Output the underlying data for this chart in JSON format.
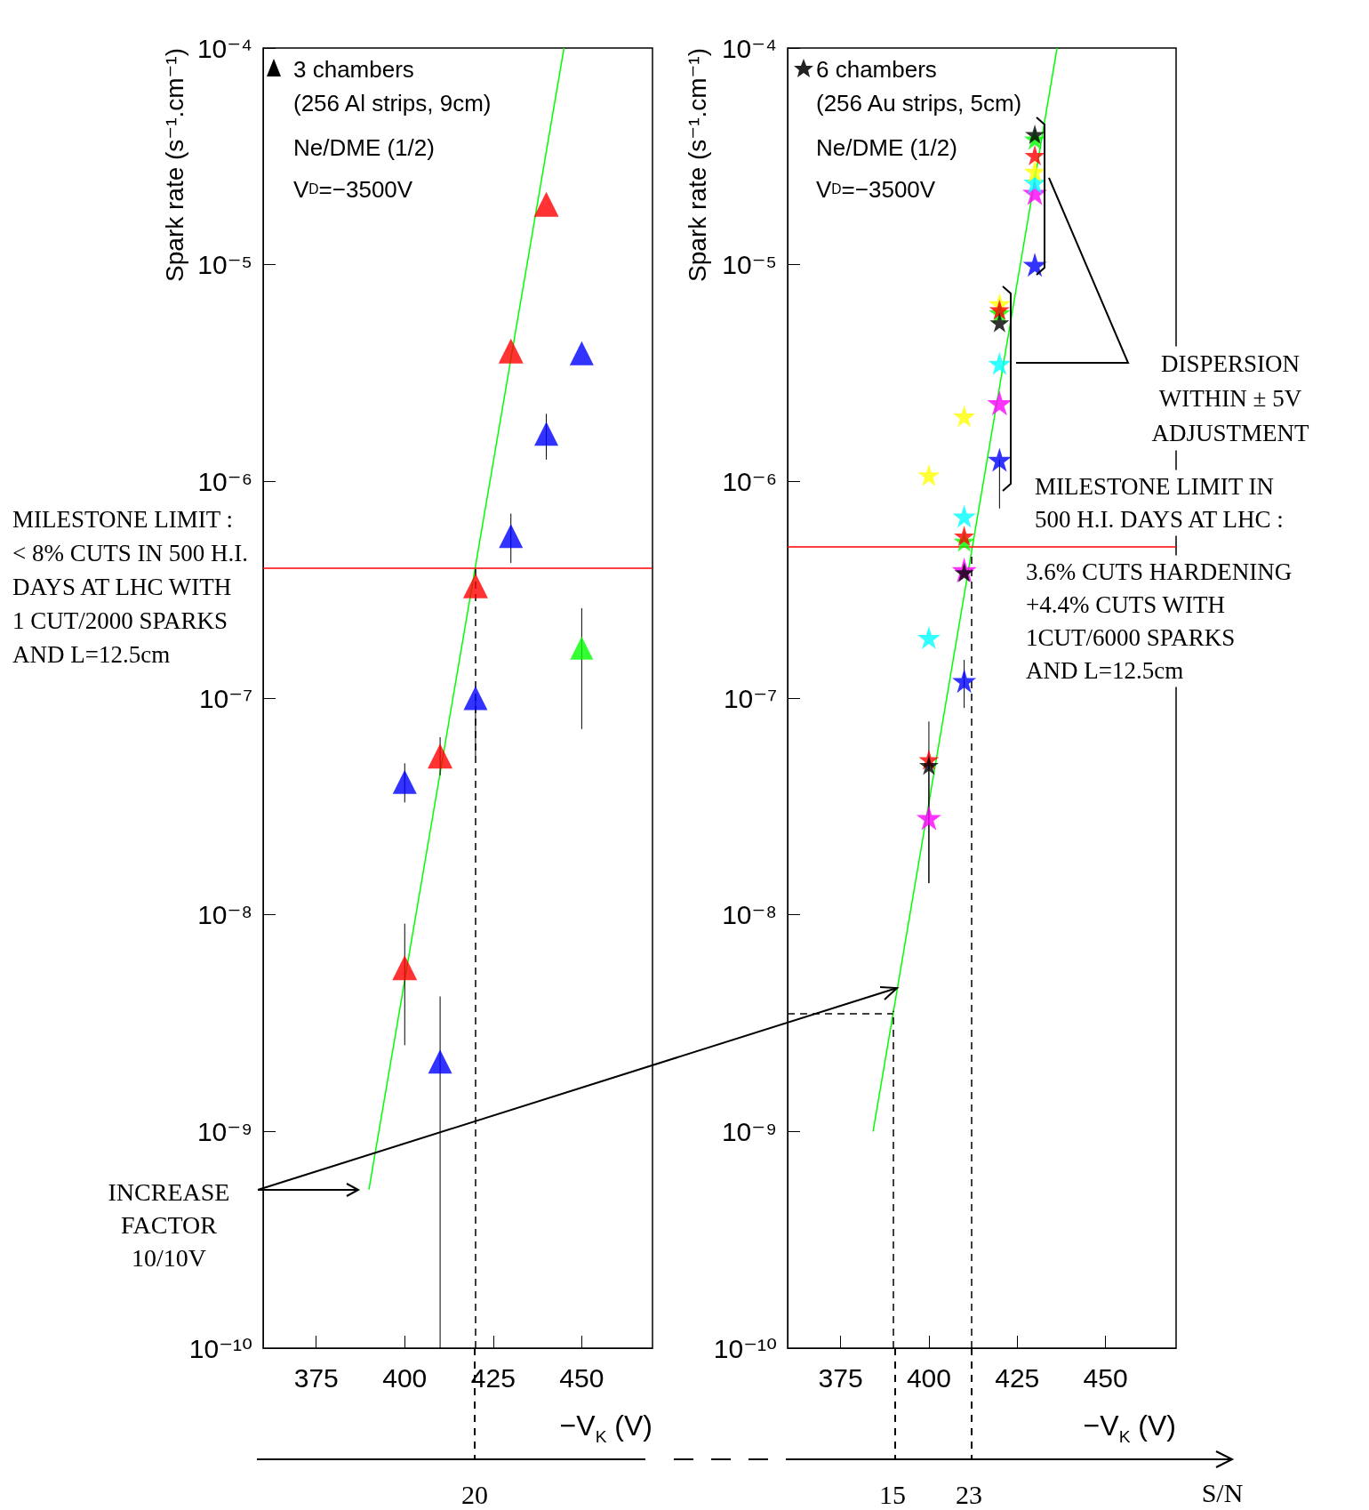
{
  "chart_data": [
    {
      "type": "scatter",
      "marker": "triangle",
      "xlim": [
        360,
        470
      ],
      "xticks": [
        375,
        400,
        425,
        450
      ],
      "ylim": [
        1e-10,
        0.0001
      ],
      "log": true,
      "yticks": [
        {
          "value": 1e-10,
          "label": "10⁻¹⁰"
        },
        {
          "value": 1e-09,
          "label": "10⁻⁹"
        },
        {
          "value": 1e-08,
          "label": "10⁻⁸"
        },
        {
          "value": 1e-07,
          "label": "10⁻⁷"
        },
        {
          "value": 1e-06,
          "label": "10⁻⁶"
        },
        {
          "value": 1e-05,
          "label": "10⁻⁵"
        },
        {
          "value": 0.0001,
          "label": "10⁻⁴"
        }
      ],
      "xlabel": "−V$_{K}$ (V)",
      "ylabel": "Spark rate (s⁻¹.cm⁻¹)",
      "series": [
        {
          "color": "#ff0000",
          "x": [
            400,
            410,
            420,
            430,
            440
          ],
          "values": [
            5.7e-09,
            5.4e-08,
            3.3e-07,
            4e-06,
            1.9e-05
          ],
          "errors": [
            [
              2.5e-09,
              9.1e-09
            ],
            [
              4.4e-08,
              6.6e-08
            ],
            null,
            null,
            null
          ]
        },
        {
          "color": "#0000ff",
          "x": [
            400,
            410,
            420,
            430,
            440,
            450
          ],
          "values": [
            4.1e-08,
            2.1e-09,
            1e-07,
            5.6e-07,
            1.66e-06,
            3.9e-06
          ],
          "errors": [
            [
              3.3e-08,
              5e-08
            ],
            [
              1e-10,
              4.2e-09
            ],
            [
              5.4e-08,
              1e-07
            ],
            [
              4.2e-07,
              7.1e-07
            ],
            [
              1.26e-06,
              2.05e-06
            ],
            null
          ]
        },
        {
          "color": "#00ff00",
          "x": [
            450
          ],
          "values": [
            1.7e-07
          ],
          "errors": [
            [
              7.2e-08,
              2.6e-07
            ]
          ]
        },
        {
          "type": "line",
          "color": "#00ff00",
          "marker": "none",
          "x": [
            389.9,
            445
          ],
          "values": [
            5.4e-10,
            0.0001
          ]
        }
      ],
      "ref_lines": [
        {
          "axis": "y",
          "value": 4e-07,
          "color": "#ff0000"
        },
        {
          "axis": "x",
          "value": 420,
          "line_style": "dashed",
          "color": "#000000"
        }
      ],
      "annotations": [
        "3 chambers",
        "(256 Al strips, 9cm)",
        "Ne/DME (1/2)",
        "V$_{D}$=−3500V",
        "MILESTONE LIMIT :\n< 8% CUTS IN 500 H.I.\nDAYS AT LHC WITH\n1 CUT/2000 SPARKS\nAND L=12.5cm",
        "INCREASE\nFACTOR\n10/10V",
        "20"
      ]
    },
    {
      "type": "scatter",
      "marker": "star",
      "xlim": [
        360,
        470
      ],
      "xticks": [
        375,
        400,
        425,
        450
      ],
      "ylim": [
        1e-10,
        0.0001
      ],
      "log": true,
      "yticks": [
        {
          "value": 1e-10,
          "label": "10⁻¹⁰"
        },
        {
          "value": 1e-09,
          "label": "10⁻⁹"
        },
        {
          "value": 1e-08,
          "label": "10⁻⁸"
        },
        {
          "value": 1e-07,
          "label": "10⁻⁷"
        },
        {
          "value": 1e-06,
          "label": "10⁻⁶"
        },
        {
          "value": 1e-05,
          "label": "10⁻⁵"
        },
        {
          "value": 0.0001,
          "label": "10⁻⁴"
        }
      ],
      "xlabel": "−V$_{K}$ (V)",
      "ylabel": "Spark rate (s⁻¹.cm⁻¹)",
      "series": [
        {
          "color": "#ff00ff",
          "x": [
            400,
            410,
            420,
            430
          ],
          "values": [
            2.8e-08,
            3.9e-07,
            2.3e-06,
            2.15e-05
          ],
          "errors": [
            [
              1.4e-08,
              5.1e-08
            ],
            null,
            null,
            null
          ]
        },
        {
          "color": "#0000ff",
          "x": [
            410,
            420,
            430
          ],
          "values": [
            1.2e-07,
            1.26e-06,
            1e-05
          ],
          "errors": [
            [
              9e-08,
              1.5e-07
            ],
            [
              7.5e-07,
              1.26e-06
            ],
            null
          ]
        },
        {
          "color": "#00ffff",
          "x": [
            400,
            410,
            420,
            430
          ],
          "values": [
            1.9e-07,
            6.9e-07,
            3.5e-06,
            2.4e-05
          ]
        },
        {
          "color": "#ffff00",
          "x": [
            400,
            410,
            420,
            430
          ],
          "values": [
            1.07e-06,
            2e-06,
            6.6e-06,
            2.7e-05
          ]
        },
        {
          "color": "#00ff00",
          "x": [
            410,
            420,
            430
          ],
          "values": [
            5.3e-07,
            6e-06,
            3.8e-05
          ]
        },
        {
          "color": "#ff0000",
          "x": [
            400,
            410,
            420,
            430
          ],
          "values": [
            5.2e-08,
            5.6e-07,
            6.2e-06,
            3.2e-05
          ]
        },
        {
          "color": "#000000",
          "x": [
            400,
            410,
            420,
            430
          ],
          "values": [
            4.9e-08,
            3.8e-07,
            5.4e-06,
            4e-05
          ],
          "errors": [
            [
              1.4e-08,
              7.8e-08
            ],
            null,
            null,
            null
          ]
        },
        {
          "type": "line",
          "color": "#00ff00",
          "marker": "none",
          "x": [
            384.2,
            436.3
          ],
          "values": [
            1e-09,
            0.0001
          ]
        }
      ],
      "ref_lines": [
        {
          "axis": "y",
          "value": 5e-07,
          "color": "#ff0000"
        },
        {
          "axis": "x",
          "value": 412,
          "line_style": "dashed",
          "color": "#000000"
        },
        {
          "axis": "x",
          "value": 390,
          "line_style": "dashed",
          "color": "#000000"
        },
        {
          "axis": "y",
          "value": 3.5e-09,
          "line_style": "dashed",
          "color": "#000000"
        }
      ],
      "annotations": [
        "6 chambers",
        "(256 Au strips, 5cm)",
        "Ne/DME (1/2)",
        "V$_{D}$=−3500V",
        "DISPERSION\nWITHIN ± 5V\nADJUSTMENT",
        "MILESTONE LIMIT IN\n500 H.I. DAYS AT LHC :",
        "3.6% CUTS HARDENING\n+4.4% CUTS WITH\n1CUT/6000 SPARKS\nAND L=12.5cm",
        "15",
        "23",
        "S/N"
      ]
    }
  ]
}
